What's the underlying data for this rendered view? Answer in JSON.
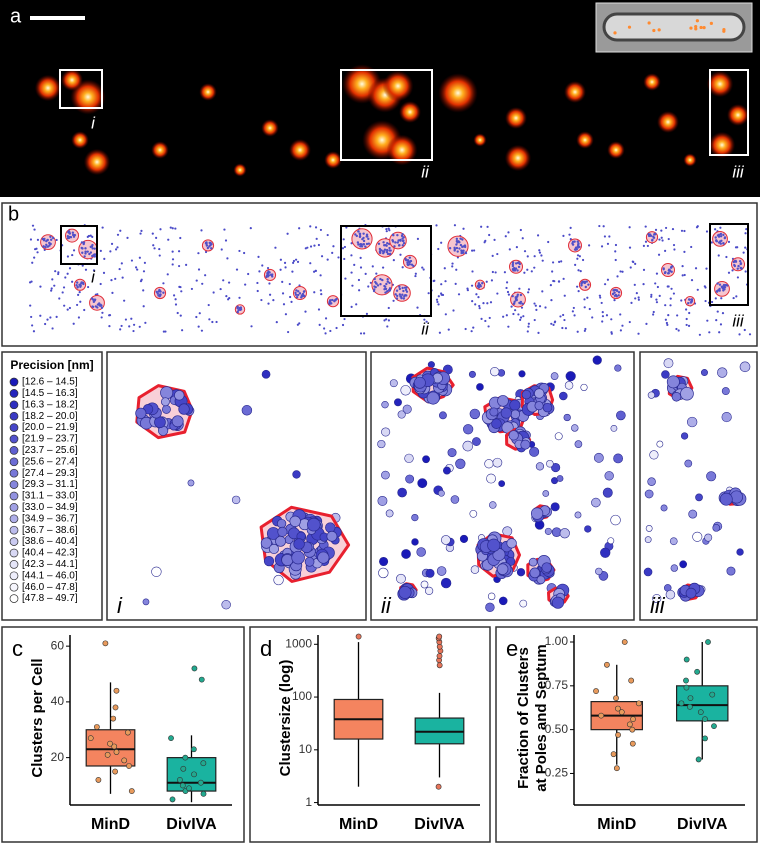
{
  "panel_a": {
    "label": "a",
    "insets": [
      "i",
      "ii",
      "iii"
    ]
  },
  "panel_b": {
    "label": "b",
    "insets": [
      "i",
      "ii",
      "iii"
    ]
  },
  "legend": {
    "title": "Precision [nm]",
    "items": [
      {
        "label": "[12.6 – 14.5]",
        "color": "#1a1ab8"
      },
      {
        "label": "[14.5 – 16.3]",
        "color": "#2424bc"
      },
      {
        "label": "[16.3 – 18.2]",
        "color": "#2f2fc0"
      },
      {
        "label": "[18.2 – 20.0]",
        "color": "#3a3ac4"
      },
      {
        "label": "[20.0 – 21.9]",
        "color": "#4646c8"
      },
      {
        "label": "[21.9 – 23.7]",
        "color": "#5252cc"
      },
      {
        "label": "[23.7 – 25.6]",
        "color": "#5f5fd0"
      },
      {
        "label": "[25.6 – 27.4]",
        "color": "#6b6bd4"
      },
      {
        "label": "[27.4 – 29.3]",
        "color": "#7878d8"
      },
      {
        "label": "[29.3 – 31.1]",
        "color": "#8585dc"
      },
      {
        "label": "[31.1 – 33.0]",
        "color": "#9292e0"
      },
      {
        "label": "[33.0 – 34.9]",
        "color": "#a0a0e4"
      },
      {
        "label": "[34.9 – 36.7]",
        "color": "#aeaee8"
      },
      {
        "label": "[36.7 – 38.6]",
        "color": "#bcbcec"
      },
      {
        "label": "[38.6 – 40.4]",
        "color": "#cacaf0"
      },
      {
        "label": "[40.4 – 42.3]",
        "color": "#d8d8f4"
      },
      {
        "label": "[42.3 – 44.1]",
        "color": "#e5e5f8"
      },
      {
        "label": "[44.1 – 46.0]",
        "color": "#eeeefb"
      },
      {
        "label": "[46.0 – 47.8]",
        "color": "#f6f6fd"
      },
      {
        "label": "[47.8 – 49.7]",
        "color": "#ffffff"
      }
    ]
  },
  "zoom": {
    "labels": [
      "i",
      "ii",
      "iii"
    ]
  },
  "chart_data": [
    {
      "type": "box",
      "panel_label": "c",
      "y_label": "Clusters per Cell",
      "categories": [
        "MinD",
        "DivIVA"
      ],
      "ylim": [
        3,
        64
      ],
      "yticks": [
        20,
        40,
        60
      ],
      "series": [
        {
          "name": "MinD",
          "color": "#f4845f",
          "point_color": "#e89a5c",
          "whisker_low": 7,
          "q1": 17,
          "median": 23,
          "q3": 30,
          "whisker_high": 47,
          "outliers": [
            61
          ],
          "points": [
            8,
            12,
            15,
            17,
            19,
            21,
            22,
            24,
            25,
            27,
            29,
            31,
            34,
            38,
            44
          ]
        },
        {
          "name": "DivIVA",
          "color": "#1ab3a0",
          "point_color": "#22a98f",
          "whisker_low": 4,
          "q1": 8,
          "median": 11,
          "q3": 20,
          "whisker_high": 28,
          "outliers": [
            48,
            52
          ],
          "points": [
            5,
            7,
            8,
            9,
            10,
            11,
            12,
            14,
            16,
            18,
            20,
            23,
            27
          ]
        }
      ]
    },
    {
      "type": "box",
      "panel_label": "d",
      "y_label": "Clustersize (log)",
      "categories": [
        "MinD",
        "DivIVA"
      ],
      "log_y": true,
      "ylim": [
        0.9,
        1500
      ],
      "yticks": [
        1,
        10,
        100,
        1000
      ],
      "series": [
        {
          "name": "MinD",
          "color": "#f4845f",
          "point_color": "#e8755a",
          "whisker_low": 2,
          "q1": 16,
          "median": 38,
          "q3": 90,
          "whisker_high": 1100,
          "outliers": [
            1400
          ],
          "points": []
        },
        {
          "name": "DivIVA",
          "color": "#1ab3a0",
          "point_color": "#e8755a",
          "whisker_low": 3,
          "q1": 13,
          "median": 22,
          "q3": 40,
          "whisker_high": 120,
          "outliers": [
            2,
            400,
            500,
            600,
            750,
            900,
            1100,
            1300,
            1400
          ],
          "points": []
        }
      ]
    },
    {
      "type": "box",
      "panel_label": "e",
      "y_label": [
        "Fraction of Clusters",
        "at Poles and Septum"
      ],
      "categories": [
        "MinD",
        "DivIVA"
      ],
      "ylim": [
        0.07,
        1.04
      ],
      "yticks": [
        {
          "value": 0.25,
          "label": "0.25"
        },
        {
          "value": 0.5,
          "label": "0.50"
        },
        {
          "value": 0.75,
          "label": "0.75"
        },
        {
          "value": 1,
          "label": "1.00"
        }
      ],
      "series": [
        {
          "name": "MinD",
          "color": "#f4845f",
          "point_color": "#e89a5c",
          "whisker_low": 0.3,
          "q1": 0.5,
          "median": 0.58,
          "q3": 0.66,
          "whisker_high": 0.87,
          "outliers": [
            1
          ],
          "points": [
            0.28,
            0.36,
            0.42,
            0.47,
            0.5,
            0.53,
            0.56,
            0.58,
            0.6,
            0.62,
            0.65,
            0.68,
            0.72,
            0.78,
            0.87
          ]
        },
        {
          "name": "DivIVA",
          "color": "#1ab3a0",
          "point_color": "#22a98f",
          "whisker_low": 0.33,
          "q1": 0.55,
          "median": 0.64,
          "q3": 0.75,
          "whisker_high": 1,
          "outliers": [],
          "points": [
            0.33,
            0.45,
            0.52,
            0.56,
            0.6,
            0.63,
            0.65,
            0.68,
            0.7,
            0.74,
            0.78,
            0.83,
            0.9,
            1
          ]
        }
      ]
    }
  ]
}
